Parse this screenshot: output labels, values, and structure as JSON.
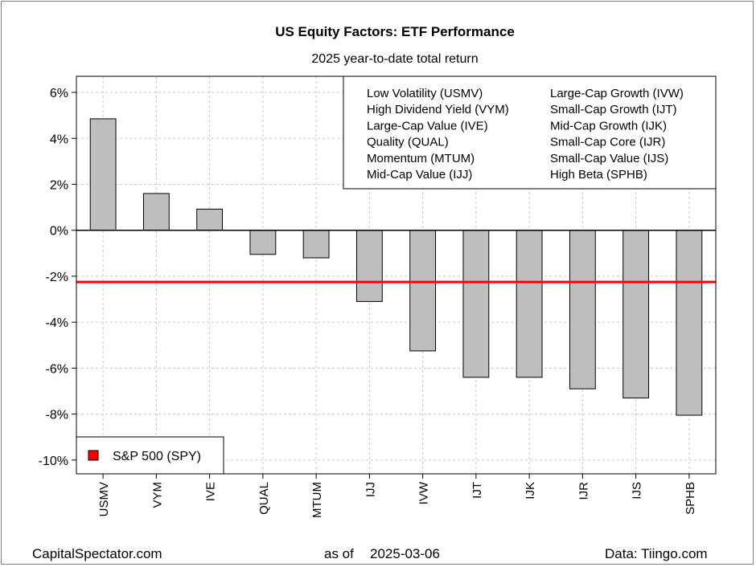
{
  "chart_data": {
    "type": "bar",
    "title": "US Equity Factors: ETF Performance",
    "subtitle": "2025 year-to-date total return",
    "categories": [
      "USMV",
      "VYM",
      "IVE",
      "QUAL",
      "MTUM",
      "IJJ",
      "IVW",
      "IJT",
      "IJK",
      "IJR",
      "IJS",
      "SPHB"
    ],
    "values": [
      4.85,
      1.6,
      0.92,
      -1.05,
      -1.2,
      -3.1,
      -5.25,
      -6.4,
      -6.4,
      -6.9,
      -7.3,
      -8.05
    ],
    "y_tick_labels": [
      "6%",
      "4%",
      "2%",
      "0%",
      "-2%",
      "-4%",
      "-6%",
      "-8%",
      "-10%"
    ],
    "y_ticks": [
      6,
      4,
      2,
      0,
      -2,
      -4,
      -6,
      -8,
      -10
    ],
    "ylim": [
      -10.6,
      6.7
    ],
    "reference_line": {
      "value": -2.25,
      "label": "S&P 500 (SPY)",
      "color": "#ff0000"
    },
    "bar_color": "#bebebe",
    "grid": true,
    "legend_entries": [
      "Low Volatility (USMV)",
      "High Dividend Yield (VYM)",
      "Large-Cap Value (IVE)",
      "Quality (QUAL)",
      "Momentum (MTUM)",
      "Mid-Cap Value (IJJ)",
      "Large-Cap Growth (IVW)",
      "Small-Cap Growth (IJT)",
      "Mid-Cap Growth (IJK)",
      "Small-Cap Core (IJR)",
      "Small-Cap Value (IJS)",
      "High Beta (SPHB)"
    ],
    "legend_placement": "top-right",
    "ref_legend_placement": "bottom-left"
  },
  "footer": {
    "left": "CapitalSpectator.com",
    "center_prefix": "as of",
    "center_date": "2025-03-06",
    "right": "Data: Tiingo.com"
  }
}
